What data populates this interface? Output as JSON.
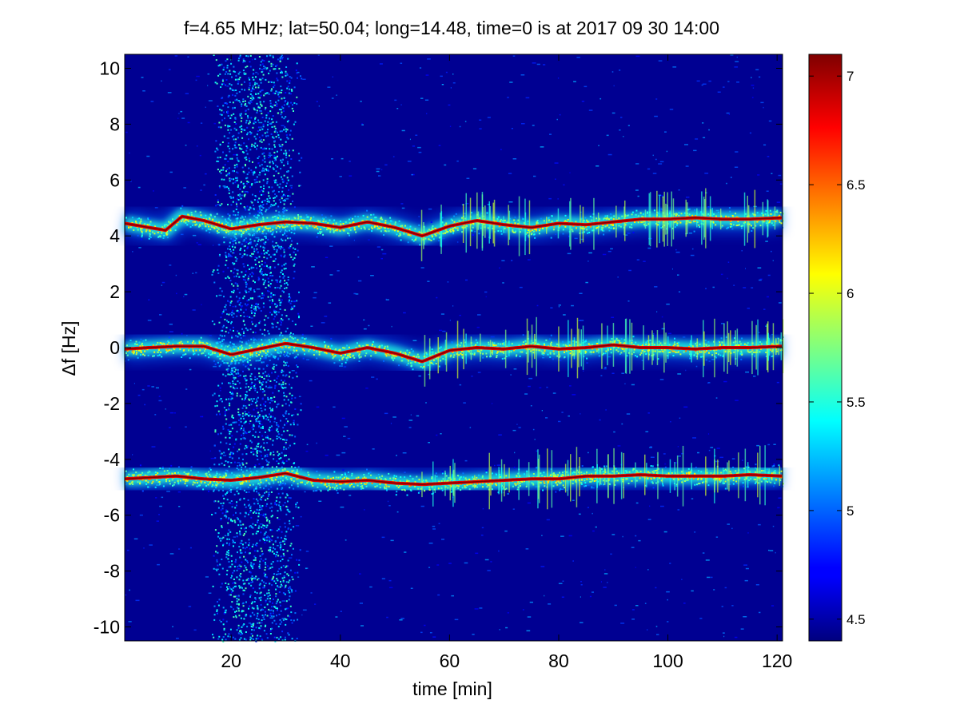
{
  "chart_data": {
    "type": "heatmap",
    "title": "f=4.65 MHz;  lat=50.04; long=14.48, time=0 is at 2017 09 30 14:00",
    "xlabel": "time [min]",
    "ylabel": "Δf [Hz]",
    "xlim": [
      0.5,
      121
    ],
    "ylim": [
      -10.5,
      10.5
    ],
    "x_ticks": [
      20,
      40,
      60,
      80,
      100,
      120
    ],
    "y_ticks": [
      10,
      8,
      6,
      4,
      2,
      0,
      -2,
      -4,
      -6,
      -8,
      -10
    ],
    "colormap": "jet",
    "colorbar": {
      "range": [
        4.4,
        7.1
      ],
      "ticks": [
        7,
        6.5,
        6,
        5.5,
        5,
        4.5
      ]
    },
    "background_value": 4.45,
    "noise_band": {
      "x_range": [
        16,
        33
      ],
      "value": 5.2
    },
    "series": [
      {
        "x": [
          0.5,
          5,
          8,
          11,
          15,
          20,
          25,
          30,
          35,
          40,
          45,
          50,
          55,
          60,
          65,
          70,
          75,
          80,
          85,
          90,
          95,
          100,
          105,
          110,
          115,
          121
        ],
        "y": [
          4.45,
          4.3,
          4.2,
          4.7,
          4.55,
          4.25,
          4.4,
          4.5,
          4.45,
          4.3,
          4.5,
          4.3,
          4.0,
          4.35,
          4.55,
          4.4,
          4.3,
          4.45,
          4.4,
          4.5,
          4.6,
          4.6,
          4.65,
          4.6,
          4.6,
          4.65
        ]
      },
      {
        "x": [
          0.5,
          5,
          10,
          15,
          20,
          25,
          30,
          35,
          40,
          45,
          50,
          55,
          60,
          65,
          70,
          75,
          80,
          85,
          90,
          95,
          100,
          105,
          110,
          115,
          121
        ],
        "y": [
          -0.05,
          0.0,
          0.05,
          0.05,
          -0.25,
          -0.05,
          0.15,
          0.0,
          -0.2,
          0.0,
          -0.2,
          -0.5,
          -0.1,
          0.0,
          -0.05,
          0.05,
          -0.05,
          0.0,
          0.1,
          0.0,
          0.0,
          -0.05,
          0.0,
          0.0,
          0.05
        ]
      },
      {
        "x": [
          0.5,
          5,
          10,
          15,
          20,
          25,
          30,
          35,
          40,
          45,
          50,
          55,
          60,
          65,
          70,
          75,
          80,
          85,
          90,
          95,
          100,
          105,
          110,
          115,
          121
        ],
        "y": [
          -4.7,
          -4.65,
          -4.6,
          -4.7,
          -4.75,
          -4.65,
          -4.5,
          -4.75,
          -4.8,
          -4.75,
          -4.85,
          -4.9,
          -4.85,
          -4.8,
          -4.75,
          -4.7,
          -4.7,
          -4.6,
          -4.6,
          -4.55,
          -4.6,
          -4.6,
          -4.6,
          -4.55,
          -4.6
        ]
      }
    ]
  }
}
